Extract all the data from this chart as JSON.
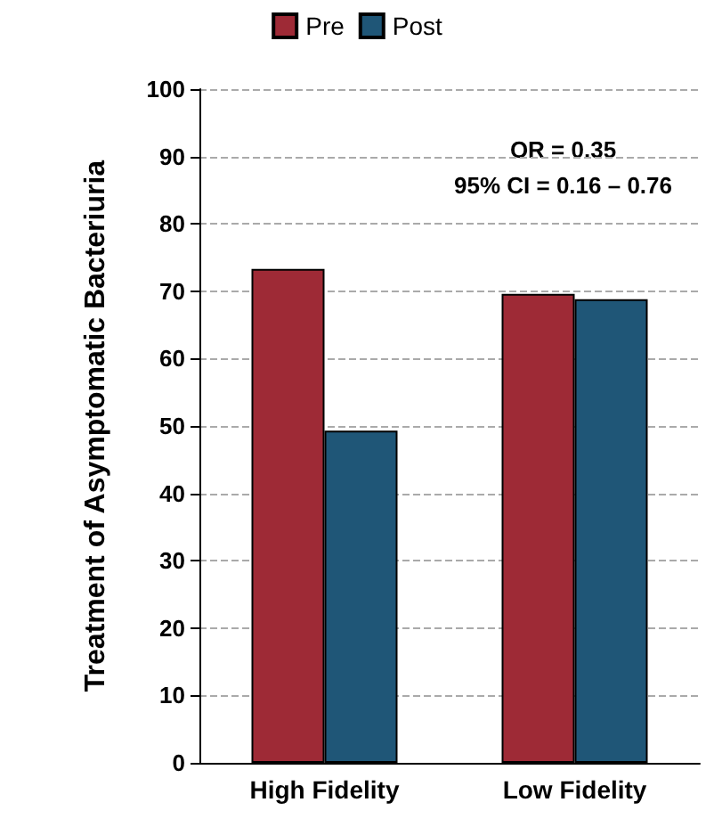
{
  "chart_data": {
    "type": "bar",
    "ylabel": "Treatment of Asymptomatic Bacteriuria",
    "categories": [
      "High Fidelity",
      "Low Fidelity"
    ],
    "series": [
      {
        "name": "Pre",
        "color": "#9e2a36",
        "values": [
          73.3,
          69.6
        ]
      },
      {
        "name": "Post",
        "color": "#1f5677",
        "values": [
          49.3,
          68.8
        ]
      }
    ],
    "ylim": [
      0,
      100
    ],
    "yticks": [
      0,
      10,
      20,
      30,
      40,
      50,
      60,
      70,
      80,
      90,
      100
    ],
    "grid": "y",
    "legend": "top",
    "annotations": [
      "OR = 0.35",
      "95% CI = 0.16 – 0.76"
    ]
  }
}
